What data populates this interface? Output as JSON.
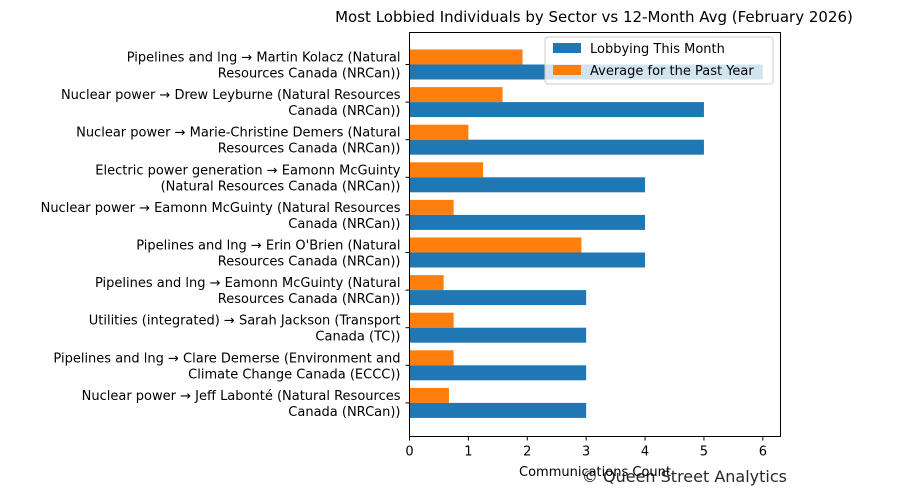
{
  "chart_data": {
    "type": "bar",
    "orientation": "horizontal",
    "title": "Most Lobbied Individuals by Sector vs 12-Month Avg (February 2026)",
    "xlabel": "Communications Count",
    "ylabel": "",
    "xlim": [
      0,
      6.3
    ],
    "xticks": [
      "0",
      "1",
      "2",
      "3",
      "4",
      "5",
      "6"
    ],
    "grid": false,
    "legend_position": "top-right",
    "categories": [
      [
        "Pipelines and lng → Martin Kolacz (Natural",
        "Resources Canada (NRCan))"
      ],
      [
        "Nuclear power → Drew Leyburne (Natural Resources",
        "Canada (NRCan))"
      ],
      [
        "Nuclear power → Marie-Christine Demers (Natural",
        "Resources Canada (NRCan))"
      ],
      [
        "Electric power generation → Eamonn McGuinty",
        "(Natural Resources Canada (NRCan))"
      ],
      [
        "Nuclear power → Eamonn McGuinty (Natural Resources",
        "Canada (NRCan))"
      ],
      [
        "Pipelines and lng → Erin O'Brien (Natural",
        "Resources Canada (NRCan))"
      ],
      [
        "Pipelines and lng → Eamonn McGuinty (Natural",
        "Resources Canada (NRCan))"
      ],
      [
        "Utilities (integrated) → Sarah Jackson (Transport",
        "Canada (TC))"
      ],
      [
        "Pipelines and lng → Clare Demerse (Environment and",
        "Climate Change Canada (ECCC))"
      ],
      [
        "Nuclear power → Jeff Labonté (Natural Resources",
        "Canada (NRCan))"
      ]
    ],
    "series": [
      {
        "name": "Lobbying This Month",
        "color": "#1f77b4",
        "values": [
          6,
          5,
          5,
          4,
          4,
          4,
          3,
          3,
          3,
          3
        ]
      },
      {
        "name": "Average for the Past Year",
        "color": "#ff7f0e",
        "values": [
          1.92,
          1.58,
          1.0,
          1.25,
          0.75,
          2.92,
          0.58,
          0.75,
          0.75,
          0.67
        ]
      }
    ],
    "watermark": "© Queen Street Analytics"
  }
}
